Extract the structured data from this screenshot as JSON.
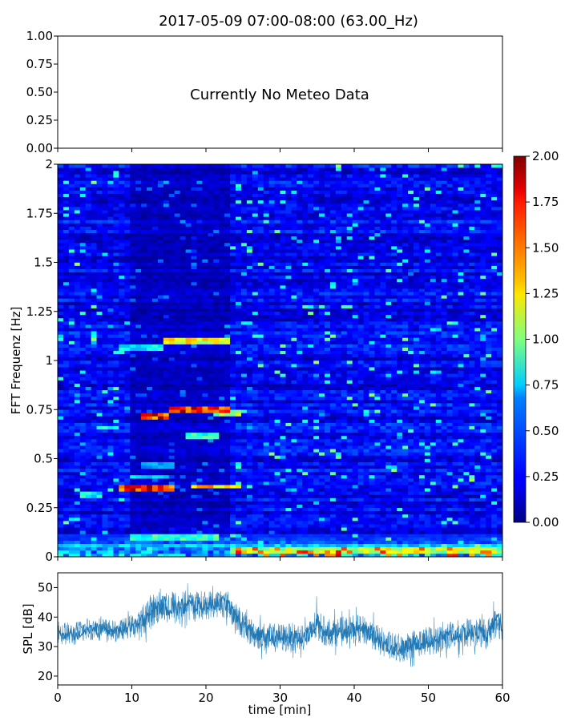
{
  "chart_data": [
    {
      "type": "line",
      "panel": "meteo",
      "title": "2017-05-09 07:00-08:00 (63.00_Hz)",
      "annotation": "Currently No Meteo Data",
      "ylim": [
        0,
        1
      ],
      "yticks": [
        "0.00",
        "0.25",
        "0.50",
        "0.75",
        "1.00"
      ],
      "series": []
    },
    {
      "type": "heatmap",
      "panel": "spectrogram",
      "ylabel": "FFT Frequenz [Hz]",
      "xlim": [
        0,
        60
      ],
      "ylim": [
        0,
        2
      ],
      "yticks": [
        "0",
        "0.25",
        "0.5",
        "0.75",
        "1",
        "1.25",
        "1.5",
        "1.75",
        "2"
      ],
      "colormap": "jet",
      "color_range": [
        0,
        2
      ],
      "colorbar_ticks": [
        "0.00",
        "0.25",
        "0.50",
        "0.75",
        "1.00",
        "1.25",
        "1.50",
        "1.75",
        "2.00"
      ],
      "background_level": 0.22,
      "features": [
        {
          "freq": 1.1,
          "t_start": 14,
          "t_end": 23,
          "level": 1.3
        },
        {
          "freq": 1.06,
          "t_start": 8,
          "t_end": 14,
          "level": 0.8
        },
        {
          "freq": 0.75,
          "t_start": 15,
          "t_end": 23,
          "level": 1.9
        },
        {
          "freq": 0.72,
          "t_start": 11,
          "t_end": 15,
          "level": 1.8
        },
        {
          "freq": 0.73,
          "t_start": 21,
          "t_end": 25,
          "level": 1.1
        },
        {
          "freq": 0.62,
          "t_start": 17,
          "t_end": 22,
          "level": 0.9
        },
        {
          "freq": 0.66,
          "t_start": 5,
          "t_end": 8,
          "level": 0.8
        },
        {
          "freq": 0.41,
          "t_start": 10,
          "t_end": 15,
          "level": 0.7
        },
        {
          "freq": 0.47,
          "t_start": 11,
          "t_end": 16,
          "level": 0.6
        },
        {
          "freq": 0.35,
          "t_start": 8,
          "t_end": 16,
          "level": 1.8
        },
        {
          "freq": 0.36,
          "t_start": 18,
          "t_end": 25,
          "level": 1.5
        },
        {
          "freq": 0.32,
          "t_start": 3,
          "t_end": 6,
          "level": 0.8
        },
        {
          "freq": 0.1,
          "t_start": 10,
          "t_end": 22,
          "level": 0.9
        },
        {
          "freq": 0.03,
          "t_start": 23,
          "t_end": 60,
          "level": 1.2
        },
        {
          "freq": 0.06,
          "t_start": 0,
          "t_end": 60,
          "level": 0.7
        }
      ]
    },
    {
      "type": "line",
      "panel": "spl",
      "xlabel": "time [min]",
      "ylabel": "SPL [dB]",
      "xlim": [
        0,
        60
      ],
      "ylim": [
        17,
        55
      ],
      "xticks": [
        "0",
        "10",
        "20",
        "30",
        "40",
        "50",
        "60"
      ],
      "yticks": [
        "20",
        "30",
        "40",
        "50"
      ],
      "color": "#1f77b4",
      "x": [
        0,
        2,
        4,
        6,
        8,
        10,
        11,
        12,
        14,
        16,
        18,
        20,
        22,
        23,
        24,
        26,
        28,
        30,
        32,
        34,
        35,
        36,
        38,
        40,
        42,
        43,
        44,
        46,
        48,
        50,
        52,
        54,
        56,
        58,
        59,
        60
      ],
      "y_center": [
        35,
        34,
        36,
        36,
        35,
        37,
        37,
        41,
        44,
        43,
        44,
        44,
        45,
        44,
        40,
        35,
        33,
        33,
        33,
        34,
        38,
        35,
        35,
        36,
        35,
        33,
        31,
        29,
        31,
        32,
        33,
        34,
        35,
        34,
        39,
        37
      ],
      "y_halfspread": [
        4,
        4,
        4,
        4,
        3.5,
        4,
        5,
        6,
        6,
        6,
        5,
        5,
        5,
        5,
        5,
        5,
        5,
        5,
        5,
        5,
        6,
        5,
        5,
        5,
        5,
        5,
        5,
        5,
        5,
        5,
        5,
        5,
        5,
        5,
        6,
        5
      ]
    }
  ]
}
